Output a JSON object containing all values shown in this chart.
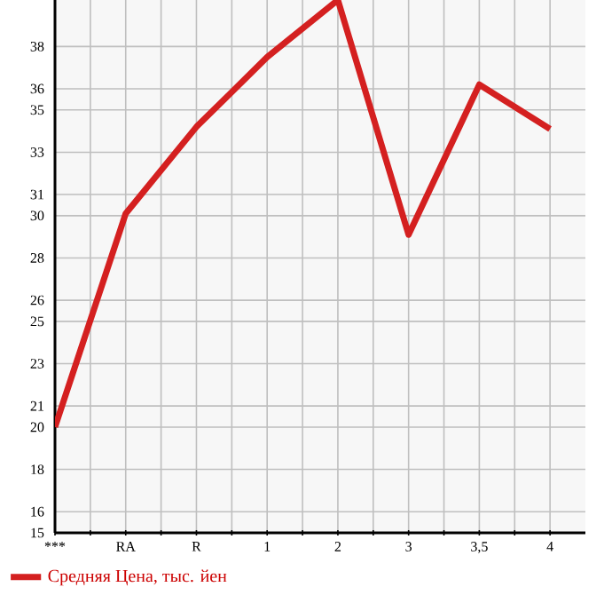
{
  "chart_data": {
    "type": "line",
    "categories": [
      "***",
      "RA",
      "R",
      "1",
      "2",
      "3",
      "3,5",
      "4"
    ],
    "series": [
      {
        "name": "Средняя Цена, тыс. йен",
        "color": "#d42020",
        "values": [
          20.0,
          30.1,
          34.2,
          37.5,
          40.2,
          29.1,
          36.2,
          34.1
        ]
      }
    ],
    "ylim": [
      15,
      40.2
    ],
    "yticks": [
      15,
      16,
      18,
      20,
      21,
      23,
      25,
      26,
      28,
      30,
      31,
      33,
      35,
      36,
      38
    ],
    "grid": true,
    "legend": "bottom",
    "marker": "none",
    "line_style": "solid"
  }
}
